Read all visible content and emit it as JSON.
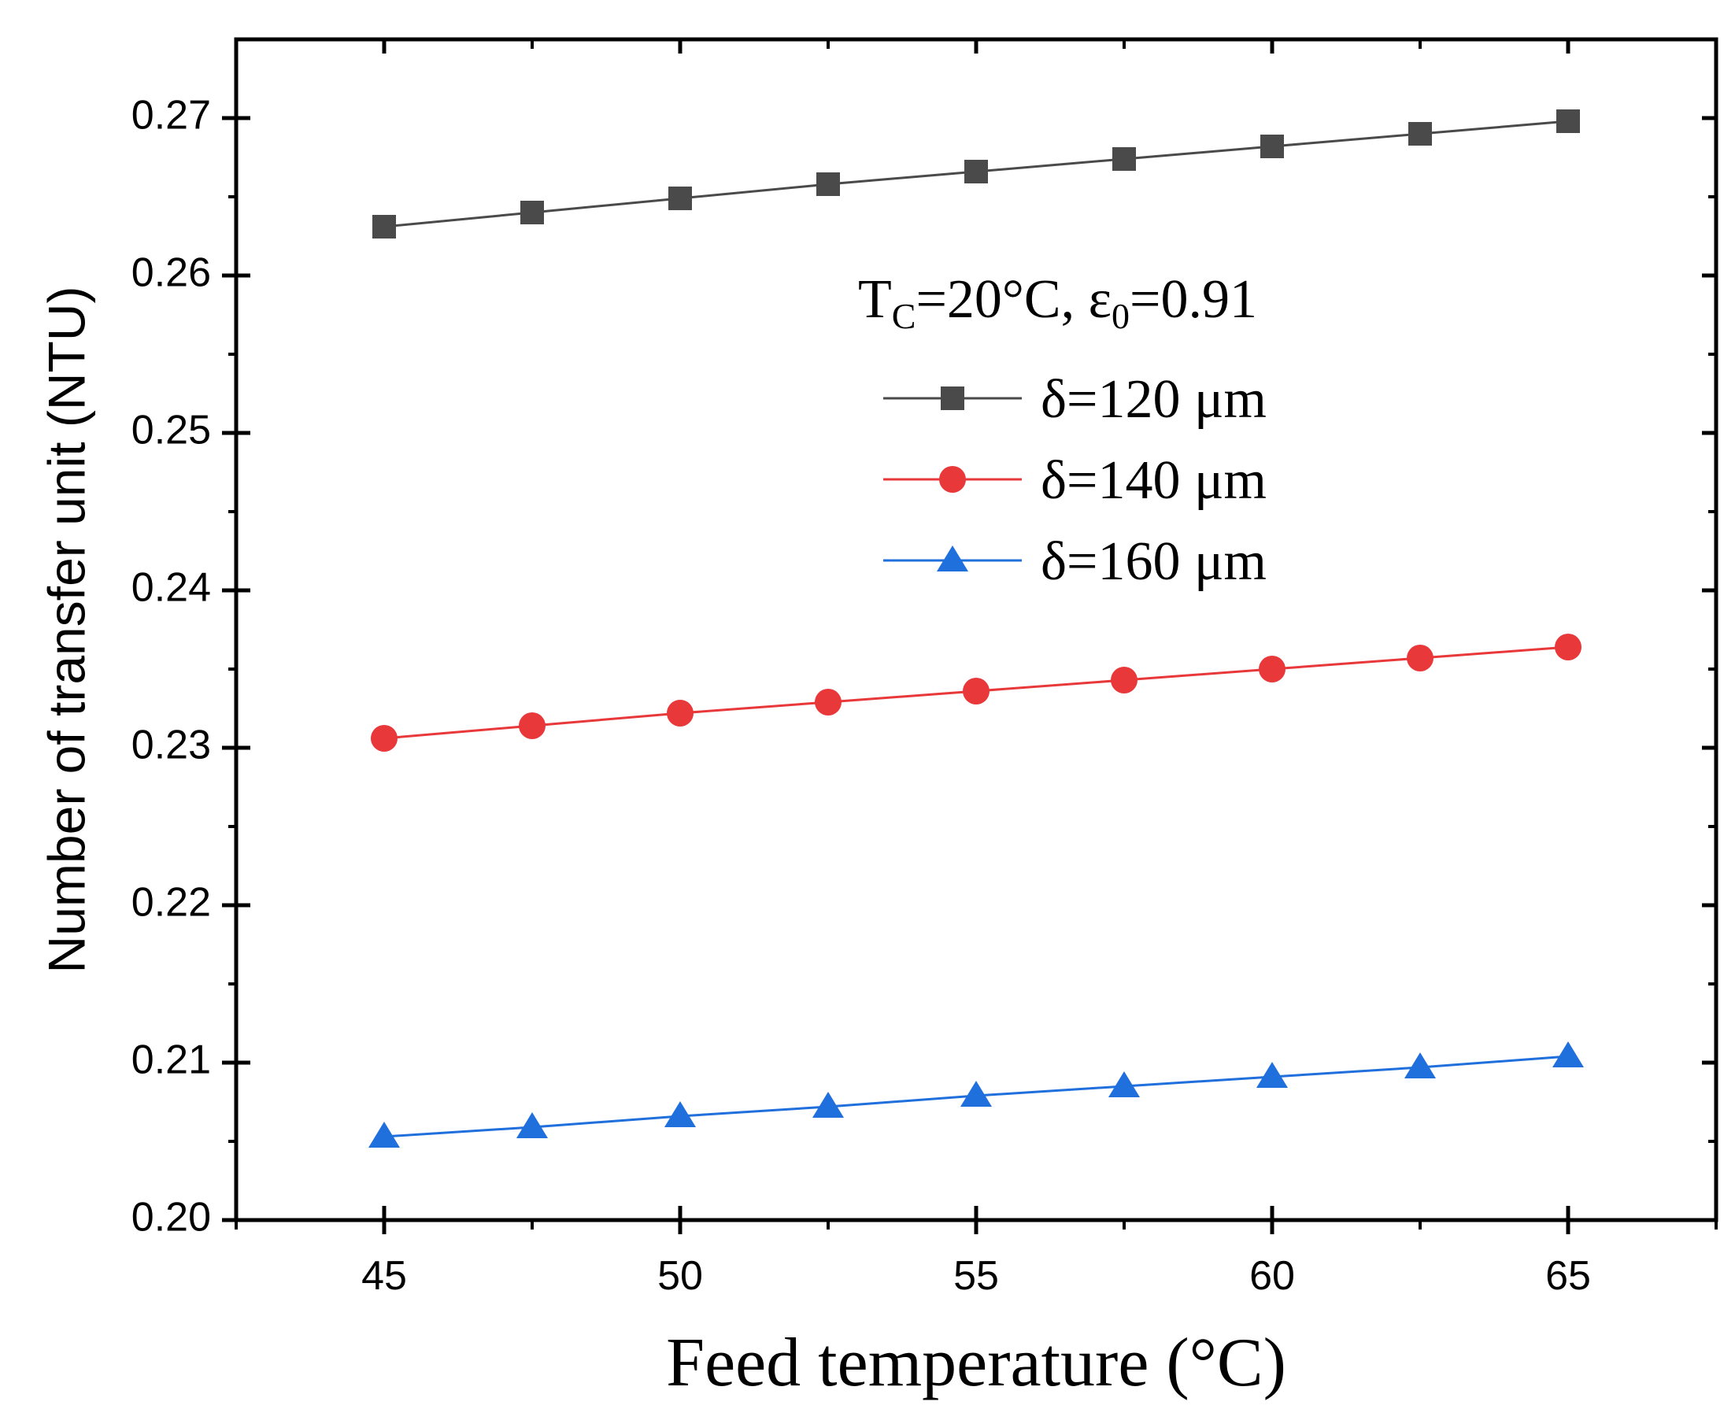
{
  "chart_data": {
    "type": "line",
    "x": [
      45,
      47.5,
      50,
      52.5,
      55,
      57.5,
      60,
      62.5,
      65
    ],
    "xlabel": "Feed temperature (°C)",
    "ylabel": "Number of transfer unit (NTU)",
    "xlim": [
      42.5,
      67.5
    ],
    "ylim": [
      0.2,
      0.275
    ],
    "xticks": [
      45,
      50,
      55,
      60,
      65
    ],
    "xtick_labels": [
      "45",
      "50",
      "55",
      "60",
      "65"
    ],
    "yticks": [
      0.2,
      0.21,
      0.22,
      0.23,
      0.24,
      0.25,
      0.26,
      0.27
    ],
    "ytick_labels": [
      "0.20",
      "0.21",
      "0.22",
      "0.23",
      "0.24",
      "0.25",
      "0.26",
      "0.27"
    ],
    "legend": {
      "title": {
        "main": "T",
        "sub1": "C",
        "mid": "=20°C, ε",
        "sub2": "0",
        "end": "=0.91"
      },
      "position": "upper-middle-right"
    },
    "series": [
      {
        "name": "δ=120 μm",
        "marker": "square",
        "color": "#4a4a4a",
        "values": [
          0.2631,
          0.264,
          0.2649,
          0.2658,
          0.2666,
          0.2674,
          0.2682,
          0.269,
          0.2698
        ]
      },
      {
        "name": "δ=140 μm",
        "marker": "circle",
        "color": "#e8383a",
        "values": [
          0.2306,
          0.2314,
          0.2322,
          0.2329,
          0.2336,
          0.2343,
          0.235,
          0.2357,
          0.2364
        ]
      },
      {
        "name": "δ=160 μm",
        "marker": "triangle",
        "color": "#1f6fdc",
        "values": [
          0.2053,
          0.2059,
          0.2066,
          0.2072,
          0.2079,
          0.2085,
          0.2091,
          0.2097,
          0.2104
        ]
      }
    ],
    "grid": false
  }
}
